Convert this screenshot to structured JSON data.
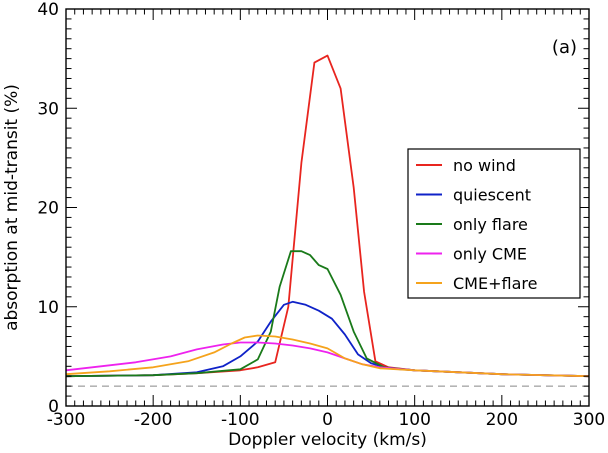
{
  "chart_data": {
    "type": "line",
    "title": "",
    "panel_label": "(a)",
    "xlabel": "Doppler velocity (km/s)",
    "ylabel": "absorption at mid-transit (%)",
    "xlim": [
      -300,
      300
    ],
    "ylim": [
      0,
      40
    ],
    "x_major_ticks": [
      -300,
      -200,
      -100,
      0,
      100,
      200,
      300
    ],
    "x_tick_labels": [
      "-300",
      "-200",
      "-100",
      "0",
      "100",
      "200",
      "300"
    ],
    "y_major_ticks": [
      0,
      10,
      20,
      30,
      40
    ],
    "y_tick_labels": [
      "0",
      "10",
      "20",
      "30",
      "40"
    ],
    "grid": false,
    "legend_position": "right",
    "reference_line": {
      "y": 2.0,
      "style": "dashed",
      "color": "#888888"
    },
    "series": [
      {
        "name": "no wind",
        "color": "#e8251f",
        "points": [
          [
            -300,
            3.0
          ],
          [
            -200,
            3.1
          ],
          [
            -150,
            3.3
          ],
          [
            -100,
            3.6
          ],
          [
            -80,
            3.9
          ],
          [
            -60,
            4.4
          ],
          [
            -45,
            10
          ],
          [
            -30,
            24.5
          ],
          [
            -15,
            34.6
          ],
          [
            0,
            35.3
          ],
          [
            15,
            32
          ],
          [
            30,
            22
          ],
          [
            42,
            11.5
          ],
          [
            55,
            4.5
          ],
          [
            70,
            3.9
          ],
          [
            100,
            3.6
          ],
          [
            200,
            3.2
          ],
          [
            300,
            3.0
          ]
        ]
      },
      {
        "name": "quiescent",
        "color": "#0f22c8",
        "points": [
          [
            -300,
            3.0
          ],
          [
            -200,
            3.1
          ],
          [
            -150,
            3.4
          ],
          [
            -120,
            4.0
          ],
          [
            -100,
            5.0
          ],
          [
            -80,
            6.5
          ],
          [
            -65,
            8.5
          ],
          [
            -50,
            10.2
          ],
          [
            -40,
            10.5
          ],
          [
            -25,
            10.2
          ],
          [
            -10,
            9.6
          ],
          [
            5,
            8.8
          ],
          [
            20,
            7.2
          ],
          [
            35,
            5.2
          ],
          [
            50,
            4.3
          ],
          [
            70,
            3.8
          ],
          [
            100,
            3.6
          ],
          [
            200,
            3.2
          ],
          [
            300,
            3.0
          ]
        ]
      },
      {
        "name": "only flare",
        "color": "#1a7a1a",
        "points": [
          [
            -300,
            3.0
          ],
          [
            -200,
            3.1
          ],
          [
            -150,
            3.3
          ],
          [
            -100,
            3.7
          ],
          [
            -80,
            4.7
          ],
          [
            -65,
            7.5
          ],
          [
            -55,
            12
          ],
          [
            -42,
            15.6
          ],
          [
            -30,
            15.6
          ],
          [
            -20,
            15.2
          ],
          [
            -10,
            14.2
          ],
          [
            0,
            13.8
          ],
          [
            15,
            11.2
          ],
          [
            30,
            7.5
          ],
          [
            45,
            4.8
          ],
          [
            65,
            3.9
          ],
          [
            100,
            3.6
          ],
          [
            200,
            3.2
          ],
          [
            300,
            3.0
          ]
        ]
      },
      {
        "name": "only CME",
        "color": "#ee22ee",
        "points": [
          [
            -300,
            3.6
          ],
          [
            -260,
            4.0
          ],
          [
            -220,
            4.4
          ],
          [
            -180,
            5.0
          ],
          [
            -150,
            5.7
          ],
          [
            -120,
            6.2
          ],
          [
            -100,
            6.4
          ],
          [
            -80,
            6.4
          ],
          [
            -60,
            6.3
          ],
          [
            -40,
            6.1
          ],
          [
            -20,
            5.8
          ],
          [
            0,
            5.4
          ],
          [
            20,
            4.8
          ],
          [
            40,
            4.2
          ],
          [
            60,
            3.9
          ],
          [
            100,
            3.6
          ],
          [
            200,
            3.2
          ],
          [
            300,
            3.0
          ]
        ]
      },
      {
        "name": "CME+flare",
        "color": "#f5a31c",
        "points": [
          [
            -300,
            3.2
          ],
          [
            -250,
            3.5
          ],
          [
            -200,
            3.9
          ],
          [
            -160,
            4.5
          ],
          [
            -130,
            5.4
          ],
          [
            -110,
            6.3
          ],
          [
            -95,
            6.9
          ],
          [
            -80,
            7.1
          ],
          [
            -60,
            7.0
          ],
          [
            -40,
            6.7
          ],
          [
            -20,
            6.3
          ],
          [
            0,
            5.8
          ],
          [
            20,
            4.8
          ],
          [
            40,
            4.2
          ],
          [
            60,
            3.8
          ],
          [
            100,
            3.6
          ],
          [
            200,
            3.2
          ],
          [
            300,
            3.0
          ]
        ]
      }
    ]
  }
}
